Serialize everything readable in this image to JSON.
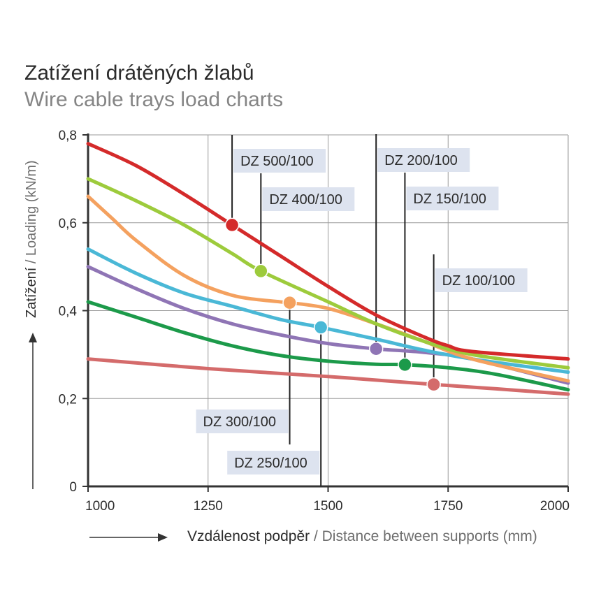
{
  "title": "Zatížení drátěných žlabů",
  "subtitle": "Wire cable trays load charts",
  "xlabel_cz": "Vzdálenost podpěr",
  "xlabel_en": " / Distance between supports (mm)",
  "ylabel_cz": "Zatížení",
  "ylabel_en": " / Loading (kN/m)",
  "chart_data": {
    "type": "line",
    "title": "Zatížení drátěných žlabů",
    "subtitle": "Wire cable trays load charts",
    "xlabel": "Vzdálenost podpěr / Distance between supports (mm)",
    "ylabel": "Zatížení / Loading (kN/m)",
    "xlim": [
      1000,
      2000
    ],
    "ylim": [
      0,
      0.8
    ],
    "xticks": [
      1000,
      1250,
      1500,
      1750,
      2000
    ],
    "xtick_labels": [
      "1000",
      "1250",
      "1500",
      "1750",
      "2000"
    ],
    "yticks": [
      0,
      0.2,
      0.4,
      0.6,
      0.8
    ],
    "ytick_labels": [
      "0",
      "0,2",
      "0,4",
      "0,6",
      "0,8"
    ],
    "grid": true,
    "series": [
      {
        "name": "DZ 500/100",
        "color": "#d42a2a",
        "x": [
          1000,
          1100,
          1200,
          1300,
          1400,
          1500,
          1600,
          1700,
          1750,
          1800,
          2000
        ],
        "y": [
          0.78,
          0.73,
          0.665,
          0.595,
          0.525,
          0.455,
          0.39,
          0.34,
          0.32,
          0.307,
          0.29
        ],
        "marker": {
          "x": 1300,
          "y": 0.595
        }
      },
      {
        "name": "DZ 400/100",
        "color": "#9dcb3c",
        "x": [
          1000,
          1100,
          1200,
          1300,
          1360,
          1500,
          1600,
          1700,
          1800,
          2000
        ],
        "y": [
          0.7,
          0.65,
          0.595,
          0.53,
          0.49,
          0.42,
          0.37,
          0.33,
          0.3,
          0.27
        ],
        "marker": {
          "x": 1360,
          "y": 0.49
        }
      },
      {
        "name": "DZ 300/100",
        "color": "#f4a15f",
        "x": [
          1000,
          1050,
          1100,
          1200,
          1300,
          1400,
          1420,
          1500,
          1600,
          1700,
          1800,
          2000
        ],
        "y": [
          0.66,
          0.61,
          0.56,
          0.48,
          0.435,
          0.42,
          0.418,
          0.405,
          0.37,
          0.33,
          0.29,
          0.24
        ],
        "marker": {
          "x": 1420,
          "y": 0.418
        }
      },
      {
        "name": "DZ 250/100",
        "color": "#4ab8d6",
        "x": [
          1000,
          1100,
          1200,
          1300,
          1400,
          1485,
          1600,
          1700,
          1800,
          2000
        ],
        "y": [
          0.54,
          0.485,
          0.44,
          0.41,
          0.38,
          0.362,
          0.335,
          0.31,
          0.29,
          0.26
        ],
        "marker": {
          "x": 1485,
          "y": 0.362
        }
      },
      {
        "name": "DZ 200/100",
        "color": "#8f75b5",
        "x": [
          1000,
          1100,
          1200,
          1300,
          1400,
          1500,
          1600,
          1700,
          1800,
          2000
        ],
        "y": [
          0.5,
          0.45,
          0.405,
          0.37,
          0.345,
          0.325,
          0.313,
          0.305,
          0.29,
          0.235
        ],
        "marker": {
          "x": 1600,
          "y": 0.313
        }
      },
      {
        "name": "DZ 150/100",
        "color": "#1c9a4a",
        "x": [
          1000,
          1100,
          1200,
          1300,
          1400,
          1500,
          1600,
          1660,
          1750,
          1850,
          2000
        ],
        "y": [
          0.42,
          0.385,
          0.35,
          0.32,
          0.298,
          0.285,
          0.278,
          0.277,
          0.27,
          0.255,
          0.22
        ],
        "marker": {
          "x": 1660,
          "y": 0.277
        }
      },
      {
        "name": "DZ 100/100",
        "color": "#d46b6b",
        "x": [
          1000,
          1250,
          1500,
          1720,
          1850,
          2000
        ],
        "y": [
          0.29,
          0.268,
          0.25,
          0.232,
          0.222,
          0.21
        ],
        "marker": {
          "x": 1720,
          "y": 0.232
        }
      }
    ],
    "annotations": [
      {
        "text": "DZ 500/100",
        "series": 0,
        "position": "above"
      },
      {
        "text": "DZ 400/100",
        "series": 1,
        "position": "above"
      },
      {
        "text": "DZ 300/100",
        "series": 2,
        "position": "below"
      },
      {
        "text": "DZ 250/100",
        "series": 3,
        "position": "below"
      },
      {
        "text": "DZ 200/100",
        "series": 4,
        "position": "above"
      },
      {
        "text": "DZ 150/100",
        "series": 5,
        "position": "above"
      },
      {
        "text": "DZ 100/100",
        "series": 6,
        "position": "above"
      }
    ]
  }
}
